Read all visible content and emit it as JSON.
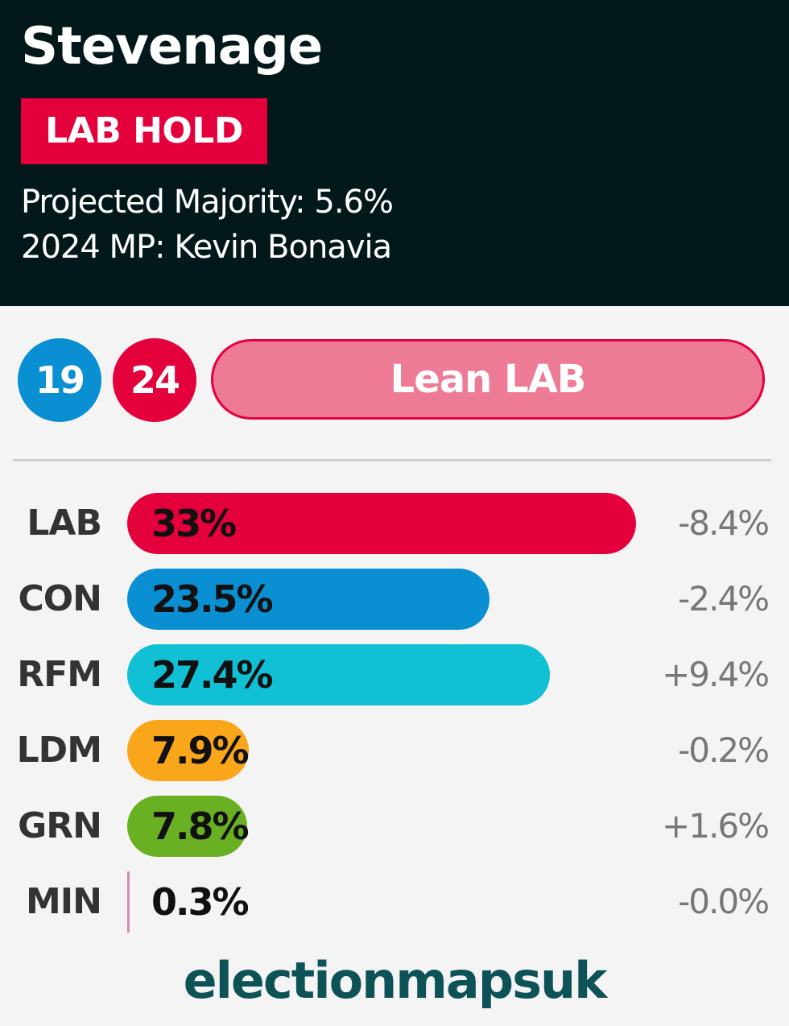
{
  "header": {
    "title": "Stevenage",
    "result": "LAB HOLD",
    "projected_majority": "Projected Majority: 5.6%",
    "mp": "2024 MP: Kevin Bonavia"
  },
  "rating": {
    "con_circle": "19",
    "lab_circle": "24",
    "lean_label": "Lean LAB"
  },
  "colors": {
    "LAB": "#e4003b",
    "CON": "#0a8fd3",
    "RFM": "#12c0d6",
    "LDM": "#faa61a",
    "GRN": "#6ab023",
    "MIN": "#d18ab3"
  },
  "chart_data": {
    "type": "bar",
    "orientation": "horizontal",
    "categories": [
      "LAB",
      "CON",
      "RFM",
      "LDM",
      "GRN",
      "MIN"
    ],
    "values": [
      33,
      23.5,
      27.4,
      7.9,
      7.8,
      0.3
    ],
    "value_labels": [
      "33%",
      "23.5%",
      "27.4%",
      "7.9%",
      "7.8%",
      "0.3%"
    ],
    "changes": [
      "-8.4%",
      "-2.4%",
      "+9.4%",
      "-0.2%",
      "+1.6%",
      "-0.0%"
    ]
  },
  "branding": "electionmapsuk"
}
